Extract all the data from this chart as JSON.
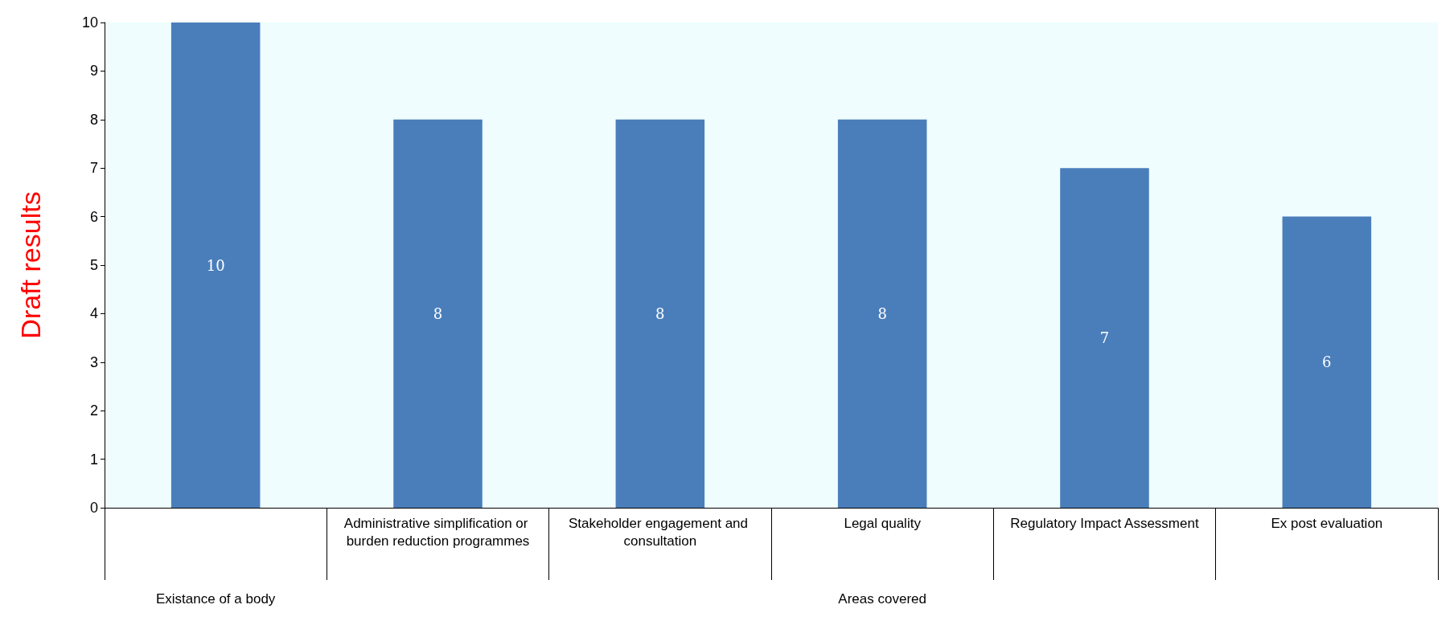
{
  "chart_data": {
    "type": "bar",
    "ylabel": "Draft results",
    "categories": [
      null,
      "Administrative simplification or burden reduction programmes",
      "Stakeholder engagement and consultation",
      "Legal quality",
      "Regulatory Impact Assessment",
      "Ex post evaluation"
    ],
    "values": [
      10,
      8,
      8,
      8,
      7,
      6
    ],
    "color": "#4a7ebb",
    "ylim": [
      0,
      10
    ],
    "yticks": [
      0,
      1,
      2,
      3,
      4,
      5,
      6,
      7,
      8,
      9,
      10
    ],
    "grid": false,
    "data_labels": true,
    "annotations": [
      "Existance of a body",
      "Areas covered"
    ]
  }
}
